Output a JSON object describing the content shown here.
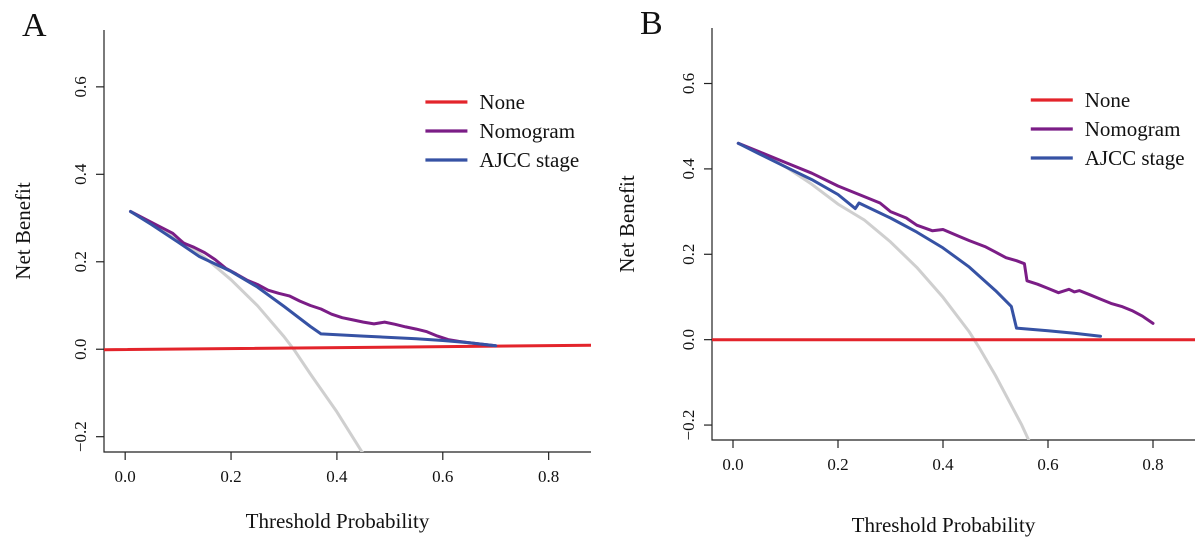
{
  "colors": {
    "none": "#e3242b",
    "nomogram": "#7b1d86",
    "ajcc": "#3652a4",
    "all": "#cfcfcf"
  },
  "chart_data": [
    {
      "type": "line",
      "panel_label": "A",
      "xlabel": "Threshold Probability",
      "ylabel": "Net Benefit",
      "xlim": [
        -0.04,
        0.88
      ],
      "ylim": [
        -0.235,
        0.73
      ],
      "xticks": [
        "0.0",
        "0.2",
        "0.4",
        "0.6",
        "0.8"
      ],
      "yticks": [
        "−0.2",
        "0.0",
        "0.2",
        "0.4",
        "0.6"
      ],
      "legend": [
        "None",
        "Nomogram",
        "AJCC stage"
      ],
      "legend_position": "top-right",
      "series": [
        {
          "name": "None",
          "x": [
            -0.04,
            0.88
          ],
          "y": [
            -0.001,
            0.009
          ]
        },
        {
          "name": "Nomogram",
          "x": [
            0.01,
            0.05,
            0.09,
            0.11,
            0.13,
            0.15,
            0.17,
            0.19,
            0.21,
            0.23,
            0.25,
            0.27,
            0.29,
            0.31,
            0.33,
            0.35,
            0.37,
            0.39,
            0.41,
            0.43,
            0.45,
            0.47,
            0.49,
            0.51,
            0.53,
            0.55,
            0.57,
            0.59,
            0.61,
            0.63,
            0.65,
            0.67,
            0.7
          ],
          "y": [
            0.315,
            0.29,
            0.265,
            0.243,
            0.233,
            0.221,
            0.205,
            0.185,
            0.172,
            0.158,
            0.148,
            0.135,
            0.128,
            0.122,
            0.11,
            0.1,
            0.092,
            0.08,
            0.072,
            0.067,
            0.062,
            0.058,
            0.062,
            0.057,
            0.051,
            0.046,
            0.04,
            0.03,
            0.022,
            0.018,
            0.015,
            0.012,
            0.008
          ]
        },
        {
          "name": "AJCC stage",
          "x": [
            0.01,
            0.05,
            0.1,
            0.14,
            0.2,
            0.25,
            0.3,
            0.35,
            0.37,
            0.45,
            0.55,
            0.6,
            0.65,
            0.7
          ],
          "y": [
            0.315,
            0.285,
            0.245,
            0.212,
            0.178,
            0.142,
            0.098,
            0.052,
            0.035,
            0.03,
            0.024,
            0.02,
            0.015,
            0.008
          ]
        },
        {
          "name": "",
          "x": [
            0.01,
            0.05,
            0.1,
            0.15,
            0.2,
            0.25,
            0.3,
            0.32,
            0.35,
            0.4,
            0.45
          ],
          "y": [
            0.315,
            0.29,
            0.253,
            0.21,
            0.159,
            0.0995,
            0.029,
            -0.003,
            -0.0567,
            -0.1433,
            -0.24
          ]
        }
      ]
    },
    {
      "type": "line",
      "panel_label": "B",
      "xlabel": "Threshold Probability",
      "ylabel": "Net Benefit",
      "xlim": [
        -0.04,
        0.88
      ],
      "ylim": [
        -0.235,
        0.73
      ],
      "xticks": [
        "0.0",
        "0.2",
        "0.4",
        "0.6",
        "0.8"
      ],
      "yticks": [
        "−0.2",
        "0.0",
        "0.2",
        "0.4",
        "0.6"
      ],
      "legend": [
        "None",
        "Nomogram",
        "AJCC stage"
      ],
      "legend_position": "top-right",
      "series": [
        {
          "name": "None",
          "x": [
            -0.04,
            0.88
          ],
          "y": [
            0,
            0
          ]
        },
        {
          "name": "Nomogram",
          "x": [
            0.01,
            0.05,
            0.1,
            0.15,
            0.2,
            0.25,
            0.28,
            0.3,
            0.33,
            0.35,
            0.38,
            0.4,
            0.43,
            0.45,
            0.48,
            0.5,
            0.52,
            0.54,
            0.555,
            0.56,
            0.58,
            0.6,
            0.62,
            0.64,
            0.65,
            0.66,
            0.68,
            0.7,
            0.72,
            0.74,
            0.76,
            0.78,
            0.8
          ],
          "y": [
            0.46,
            0.44,
            0.415,
            0.39,
            0.36,
            0.335,
            0.32,
            0.3,
            0.285,
            0.268,
            0.255,
            0.258,
            0.242,
            0.232,
            0.218,
            0.205,
            0.192,
            0.185,
            0.178,
            0.138,
            0.13,
            0.12,
            0.11,
            0.118,
            0.112,
            0.115,
            0.105,
            0.095,
            0.085,
            0.078,
            0.068,
            0.055,
            0.038
          ]
        },
        {
          "name": "AJCC stage",
          "x": [
            0.01,
            0.05,
            0.1,
            0.15,
            0.2,
            0.233,
            0.24,
            0.3,
            0.35,
            0.4,
            0.45,
            0.5,
            0.53,
            0.54,
            0.6,
            0.65,
            0.7
          ],
          "y": [
            0.46,
            0.435,
            0.405,
            0.375,
            0.34,
            0.307,
            0.32,
            0.285,
            0.252,
            0.215,
            0.17,
            0.115,
            0.078,
            0.027,
            0.021,
            0.015,
            0.008
          ]
        },
        {
          "name": "",
          "x": [
            0.01,
            0.05,
            0.1,
            0.15,
            0.2,
            0.25,
            0.3,
            0.35,
            0.4,
            0.45,
            0.47,
            0.5,
            0.55,
            0.565
          ],
          "y": [
            0.46,
            0.438,
            0.405,
            0.364,
            0.3175,
            0.2803,
            0.2291,
            0.1692,
            0.0993,
            0.0182,
            -0.0209,
            -0.084,
            -0.2,
            -0.24
          ]
        }
      ]
    }
  ]
}
